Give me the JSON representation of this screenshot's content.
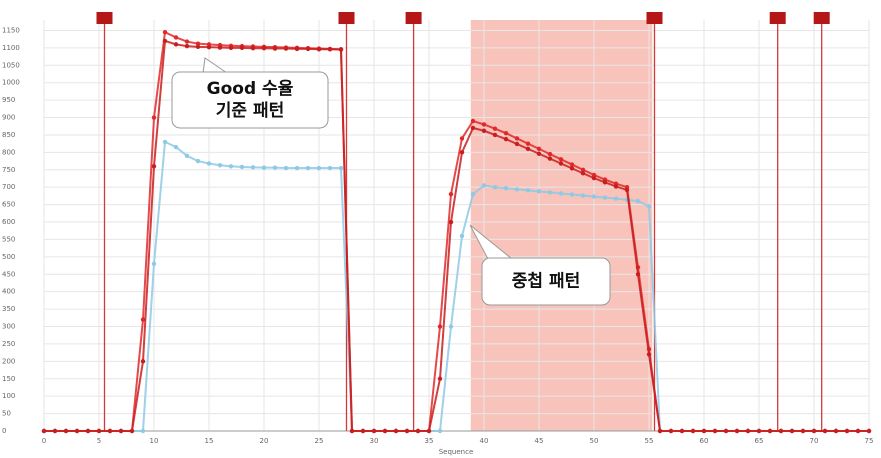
{
  "chart_data": {
    "type": "line",
    "x_label": "Sequence",
    "xlim": [
      0,
      75
    ],
    "ylim": [
      0,
      1180
    ],
    "xticks": [
      0,
      5,
      10,
      15,
      20,
      25,
      30,
      35,
      40,
      45,
      50,
      55,
      60,
      65,
      70,
      75
    ],
    "yticks": [
      0,
      50,
      100,
      150,
      200,
      250,
      300,
      350,
      400,
      450,
      500,
      550,
      600,
      650,
      700,
      750,
      800,
      850,
      900,
      950,
      1000,
      1050,
      1100,
      1150
    ],
    "grid": true,
    "vertical_lines": [
      5.5,
      27.5,
      33.6,
      55.5,
      66.7,
      70.7
    ],
    "vertical_line_color": "#d23a3a",
    "shaded_range": [
      38.8,
      55.3
    ],
    "shaded_color": "#f7b9ae",
    "series": [
      {
        "color": "#e0292a",
        "values": [
          0,
          0,
          0,
          0,
          0,
          0,
          0,
          0,
          0,
          320,
          900,
          1145,
          1130,
          1118,
          1112,
          1110,
          1108,
          1106,
          1105,
          1104,
          1103,
          1102,
          1101,
          1100,
          1099,
          1098,
          1097,
          1096,
          0,
          0,
          0,
          0,
          0,
          0,
          0,
          0,
          300,
          680,
          840,
          890,
          880,
          868,
          855,
          840,
          825,
          810,
          795,
          780,
          765,
          750,
          735,
          722,
          710,
          700,
          470,
          235,
          0,
          0,
          0,
          0,
          0,
          0,
          0,
          0,
          0,
          0,
          0,
          0,
          0,
          0,
          0,
          0,
          0,
          0,
          0,
          0
        ]
      },
      {
        "color": "#c81e1e",
        "values": [
          0,
          0,
          0,
          0,
          0,
          0,
          0,
          0,
          0,
          200,
          760,
          1120,
          1110,
          1105,
          1103,
          1102,
          1101,
          1100,
          1100,
          1099,
          1099,
          1098,
          1098,
          1097,
          1097,
          1096,
          1096,
          1095,
          0,
          0,
          0,
          0,
          0,
          0,
          0,
          0,
          150,
          600,
          800,
          870,
          862,
          850,
          838,
          824,
          810,
          796,
          782,
          768,
          754,
          740,
          726,
          714,
          702,
          692,
          450,
          220,
          0,
          0,
          0,
          0,
          0,
          0,
          0,
          0,
          0,
          0,
          0,
          0,
          0,
          0,
          0,
          0,
          0,
          0,
          0,
          0
        ]
      },
      {
        "color": "#8ec9e6",
        "values": [
          0,
          0,
          0,
          0,
          0,
          0,
          0,
          0,
          0,
          0,
          480,
          830,
          815,
          790,
          775,
          768,
          763,
          760,
          758,
          757,
          756,
          756,
          755,
          755,
          755,
          755,
          755,
          755,
          0,
          0,
          0,
          0,
          0,
          0,
          0,
          0,
          0,
          300,
          560,
          680,
          705,
          700,
          697,
          694,
          691,
          688,
          685,
          682,
          679,
          676,
          673,
          670,
          667,
          664,
          660,
          645,
          0,
          0,
          0,
          0,
          0,
          0,
          0,
          0,
          0,
          0,
          0,
          0,
          0,
          0,
          0,
          0,
          0,
          0,
          0,
          0
        ]
      }
    ],
    "annotations": [
      {
        "lines": [
          "Good 수율",
          "기준 패턴"
        ]
      },
      {
        "lines": [
          "중첩 패턴"
        ]
      }
    ]
  }
}
